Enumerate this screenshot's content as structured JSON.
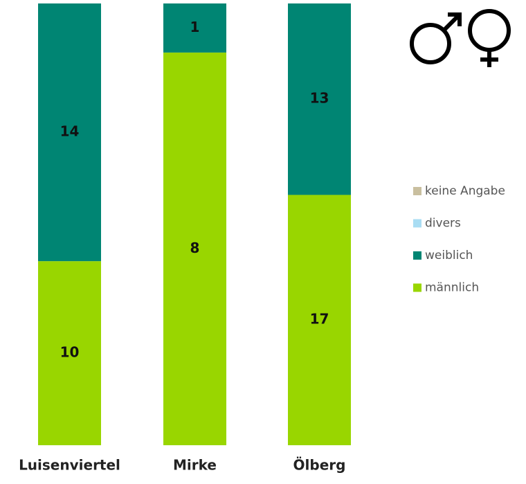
{
  "chart_data": {
    "type": "stacked_percent_bar",
    "categories": [
      "Luisenviertel",
      "Mirke",
      "Ölberg"
    ],
    "series": [
      {
        "name": "keine Angabe",
        "color": "#c9bf9f",
        "values": [
          0,
          0,
          0
        ]
      },
      {
        "name": "divers",
        "color": "#a9ddf3",
        "values": [
          0,
          0,
          0
        ]
      },
      {
        "name": "weiblich",
        "color": "#008573",
        "values": [
          14,
          1,
          13
        ]
      },
      {
        "name": "männlich",
        "color": "#99d600",
        "values": [
          10,
          8,
          17
        ]
      }
    ]
  }
}
